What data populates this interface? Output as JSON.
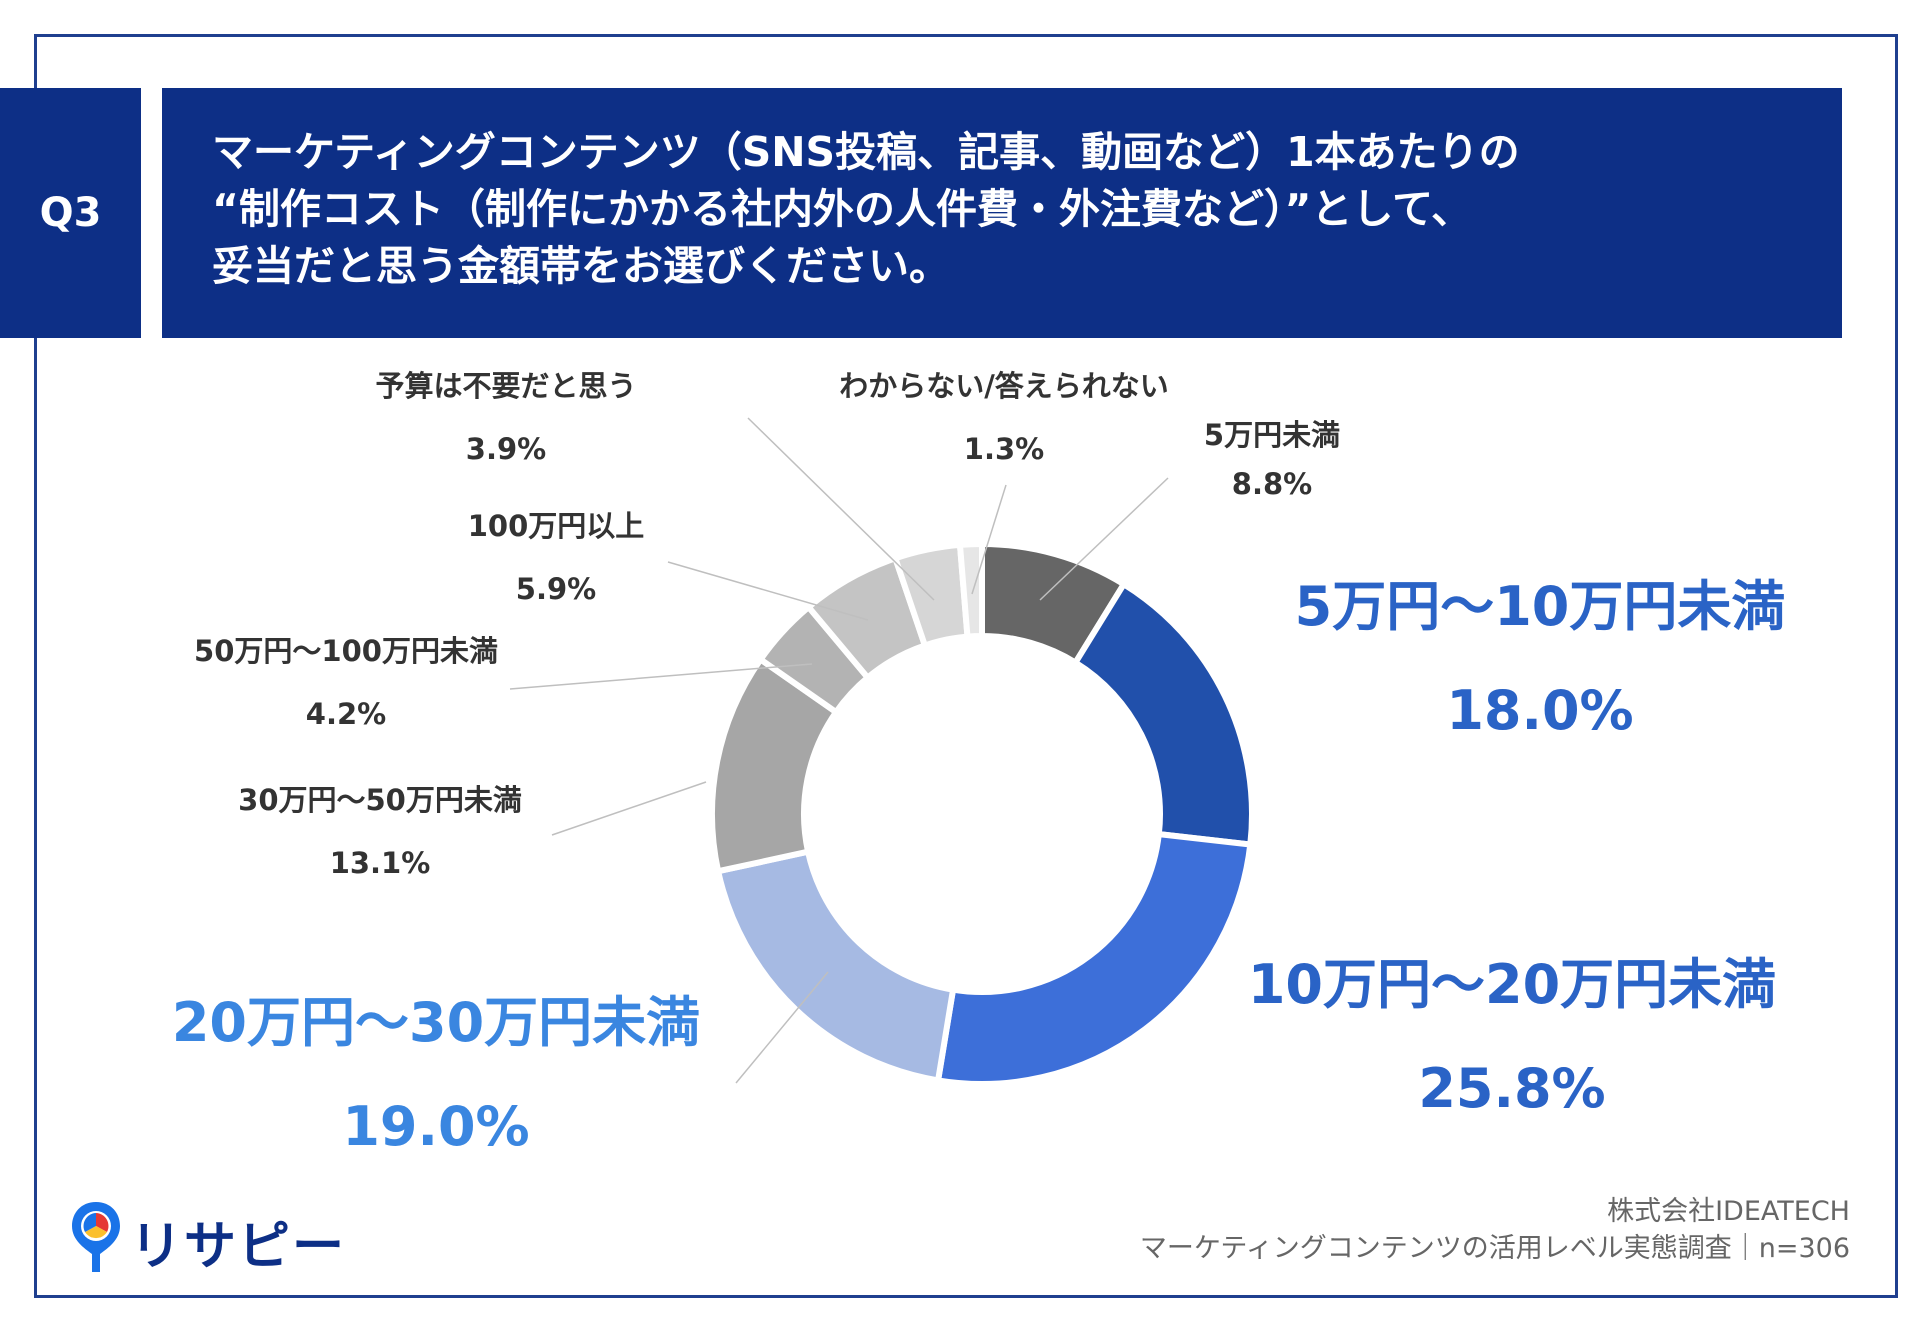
{
  "question": {
    "badge": "Q3",
    "lines": [
      "マーケティングコンテンツ（SNS投稿、記事、動画など）1本あたりの",
      "“制作コスト（制作にかかる社内外の人件費・外注費など）”として、",
      "妥当だと思う金額帯をお選びください。"
    ]
  },
  "chart_data": {
    "type": "pie",
    "donut": true,
    "unit": "%",
    "categories": [
      "5万円未満",
      "5万円～10万円未満",
      "10万円～20万円未満",
      "20万円～30万円未満",
      "30万円～50万円未満",
      "50万円～100万円未満",
      "100万円以上",
      "予算は不要だと思う",
      "わからない/答えられない"
    ],
    "values": [
      8.8,
      18.0,
      25.8,
      19.0,
      13.1,
      4.2,
      5.9,
      3.9,
      1.3
    ],
    "value_labels": [
      "8.8%",
      "18.0%",
      "25.8%",
      "19.0%",
      "13.1%",
      "4.2%",
      "5.9%",
      "3.9%",
      "1.3%"
    ],
    "colors": [
      "#666666",
      "#2150ab",
      "#3d6fd9",
      "#a6bae3",
      "#a6a6a6",
      "#b3b3b3",
      "#c4c4c4",
      "#d6d6d6",
      "#e6e6e6"
    ],
    "label_colors": [
      "#333333",
      "#2a63c6",
      "#2a63c6",
      "#3a86e0",
      "#333333",
      "#333333",
      "#333333",
      "#333333",
      "#333333"
    ]
  },
  "footer": {
    "company": "株式会社IDEATECH",
    "survey": "マーケティングコンテンツの活用レベル実態調査｜n=306"
  },
  "logo": {
    "text": "リサピー"
  }
}
